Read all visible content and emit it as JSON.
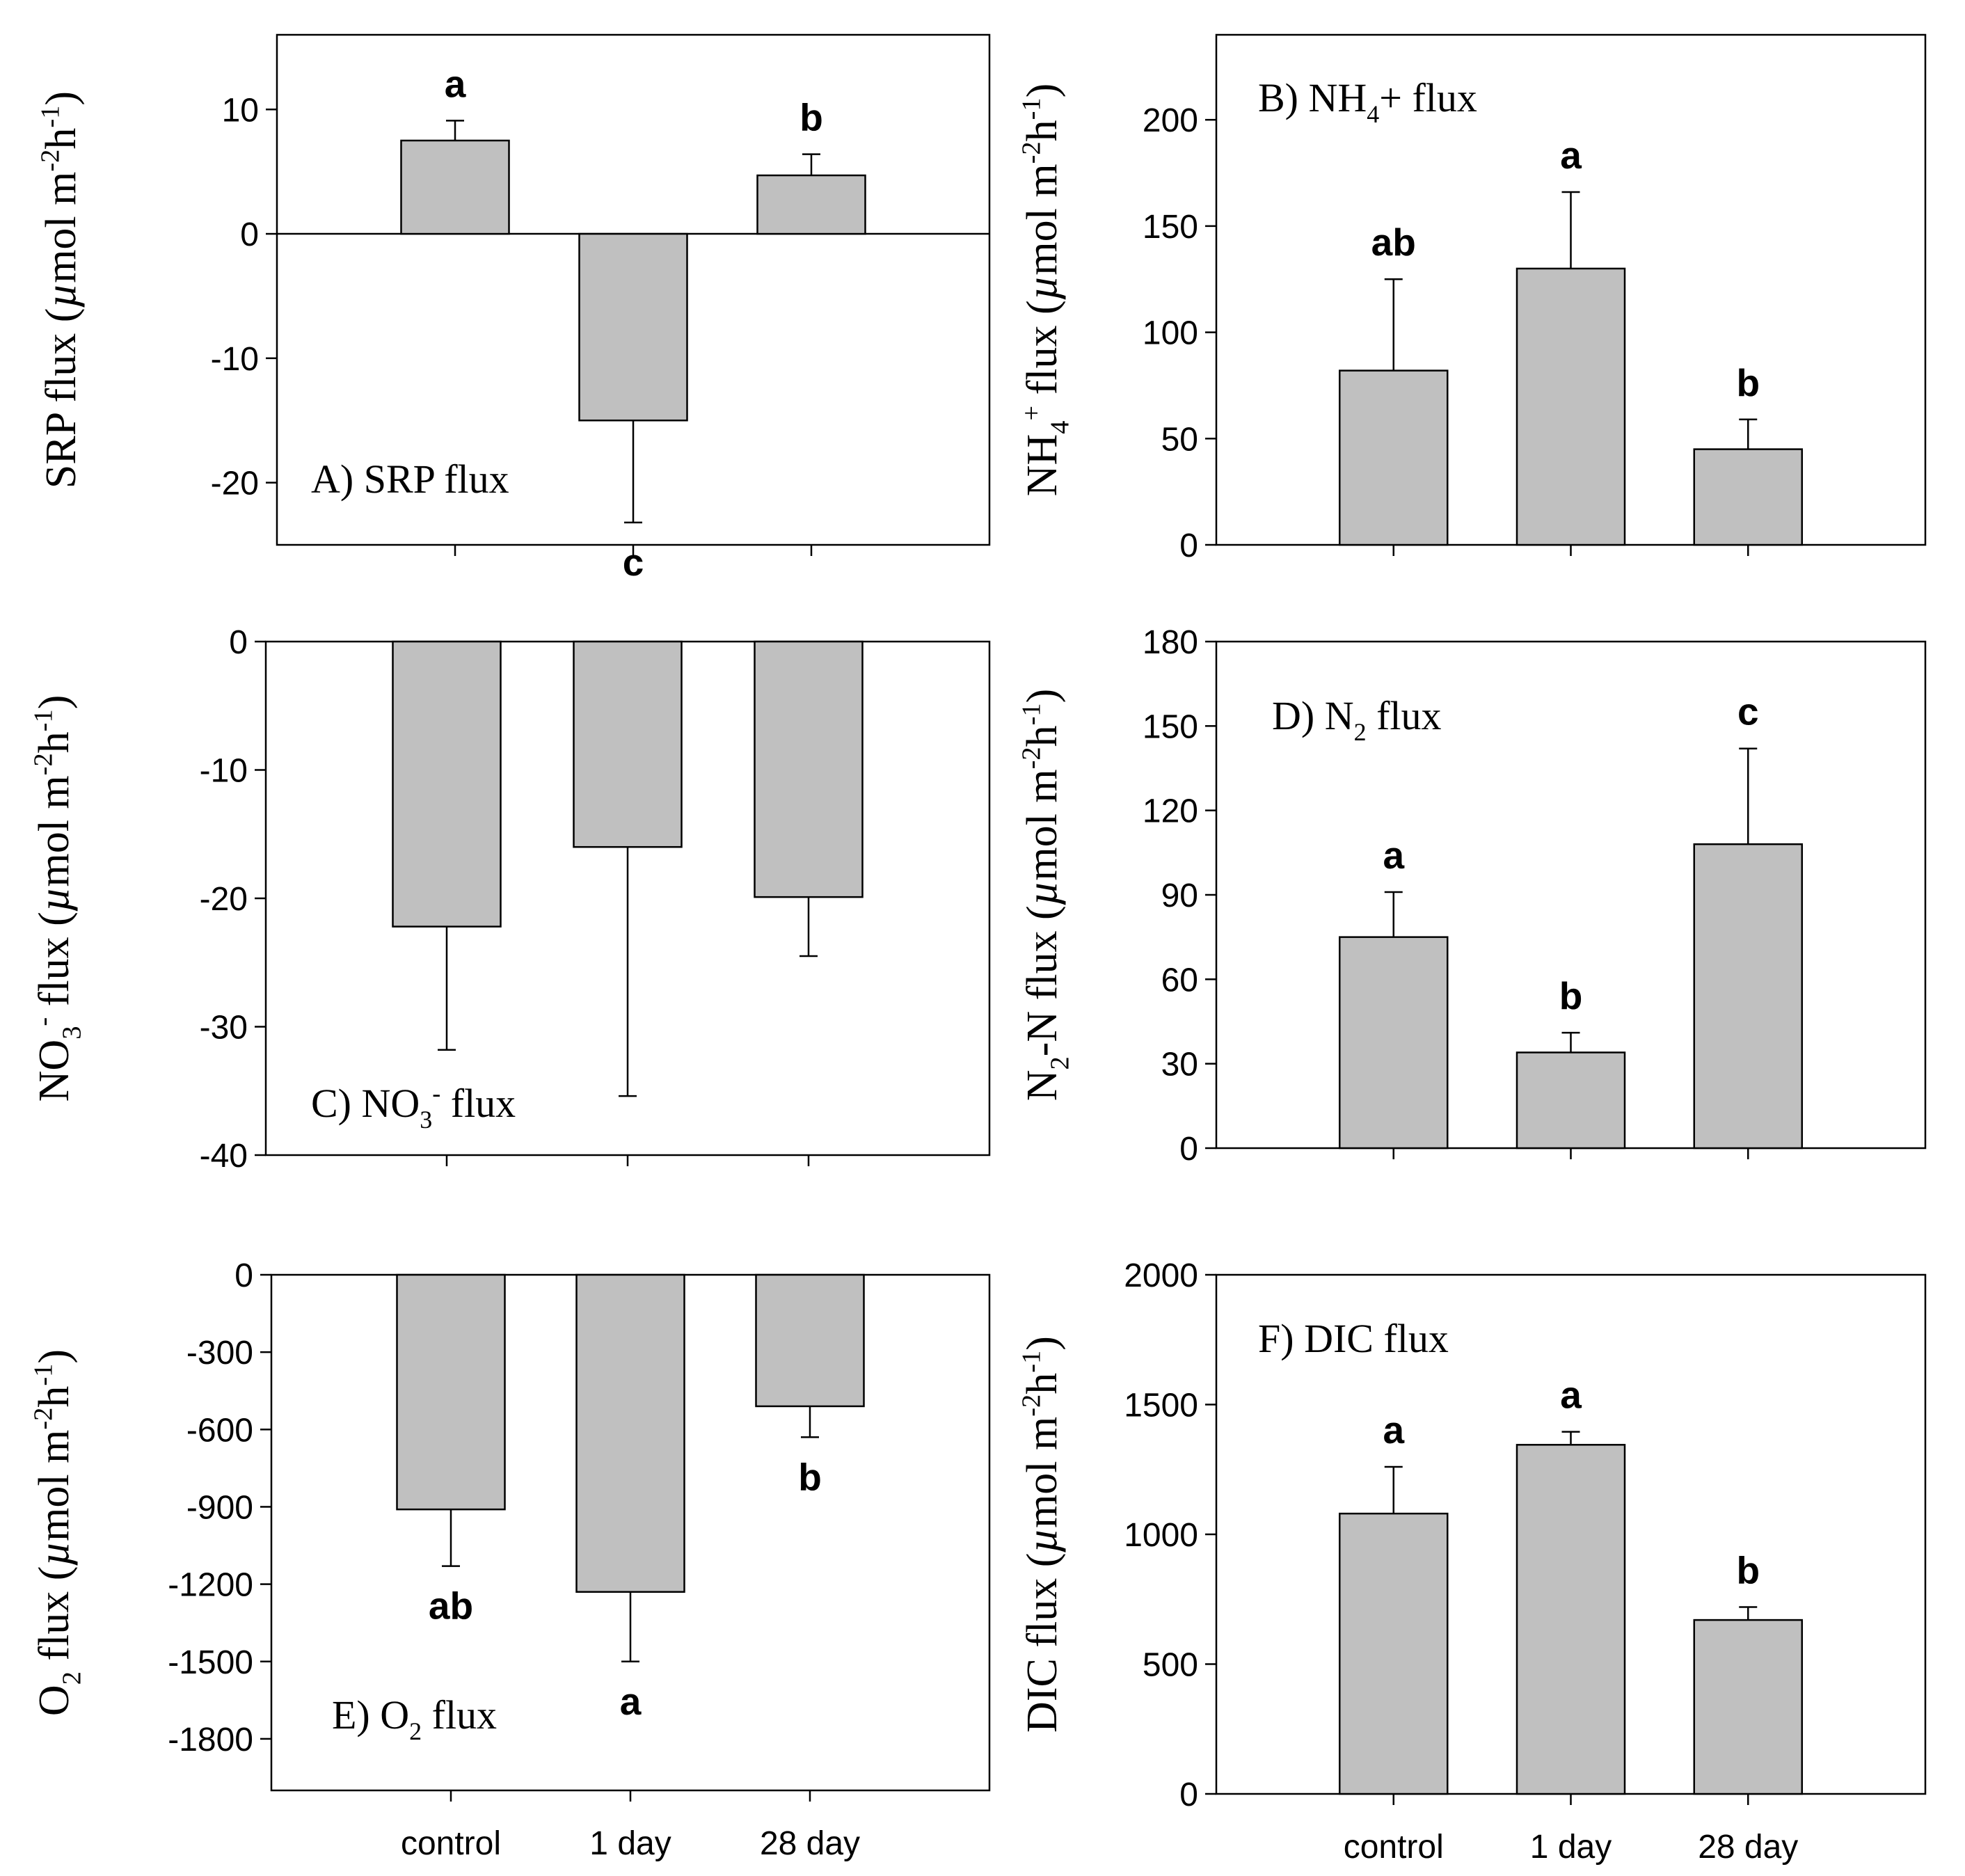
{
  "chart_data": [
    {
      "id": "A",
      "type": "bar",
      "title": "A) SRP flux",
      "title_parts": [
        {
          "t": "A) SRP flux"
        }
      ],
      "ylabel": "SRP flux (µmol m-2 h-1)",
      "ylabel_parts": [
        {
          "t": "SRP flux ("
        },
        {
          "t": "µ",
          "style": "mu"
        },
        {
          "t": "mol m"
        },
        {
          "t": "-2",
          "sup": true
        },
        {
          "t": "h"
        },
        {
          "t": "-1",
          "sup": true
        },
        {
          "t": ")"
        }
      ],
      "categories": [
        "control",
        "1 day",
        "28 day"
      ],
      "show_categories": false,
      "values": [
        7.5,
        -15,
        4.7
      ],
      "errors": [
        1.6,
        8.2,
        1.7
      ],
      "letters": [
        "a",
        "c",
        "b"
      ],
      "ylim": [
        -25,
        16
      ],
      "yticks": [
        10,
        0,
        -10,
        -20
      ],
      "zero_line": true,
      "bar_color": "#c0c0c0"
    },
    {
      "id": "B",
      "type": "bar",
      "title": "B) NH4+ flux",
      "title_parts": [
        {
          "t": "B) NH"
        },
        {
          "t": "4",
          "sub": true
        },
        {
          "t": "+ flux"
        }
      ],
      "ylabel": "NH4+ flux (µmol m-2 h-1)",
      "ylabel_parts": [
        {
          "t": "NH"
        },
        {
          "t": "4",
          "sub": true
        },
        {
          "t": "+",
          "sup": true
        },
        {
          "t": " flux ("
        },
        {
          "t": "µ",
          "style": "mu"
        },
        {
          "t": "mol m"
        },
        {
          "t": "-2",
          "sup": true
        },
        {
          "t": "h"
        },
        {
          "t": "-1",
          "sup": true
        },
        {
          "t": ")"
        }
      ],
      "categories": [
        "control",
        "1 day",
        "28 day"
      ],
      "show_categories": false,
      "values": [
        82,
        130,
        45
      ],
      "errors": [
        43,
        36,
        14
      ],
      "letters": [
        "ab",
        "a",
        "b"
      ],
      "ylim": [
        0,
        240
      ],
      "yticks": [
        0,
        50,
        100,
        150,
        200
      ],
      "zero_line": false,
      "bar_color": "#c0c0c0"
    },
    {
      "id": "C",
      "type": "bar",
      "title": "C) NO3- flux",
      "title_parts": [
        {
          "t": "C) NO"
        },
        {
          "t": "3",
          "sub": true
        },
        {
          "t": "-",
          "sup": true
        },
        {
          "t": " flux"
        }
      ],
      "ylabel": "NO3- flux (µmol m-2 h-1)",
      "ylabel_parts": [
        {
          "t": "NO"
        },
        {
          "t": "3",
          "sub": true
        },
        {
          "t": "-",
          "sup": true
        },
        {
          "t": " flux ("
        },
        {
          "t": "µ",
          "style": "mu"
        },
        {
          "t": "mol m"
        },
        {
          "t": "-2",
          "sup": true
        },
        {
          "t": "h"
        },
        {
          "t": "-1",
          "sup": true
        },
        {
          "t": ")"
        }
      ],
      "categories": [
        "control",
        "1 day",
        "28 day"
      ],
      "show_categories": false,
      "values": [
        -22.2,
        -16,
        -19.9
      ],
      "errors": [
        9.6,
        19.4,
        4.6
      ],
      "letters": [
        "",
        "",
        ""
      ],
      "ylim": [
        -40,
        0
      ],
      "yticks": [
        0,
        -10,
        -20,
        -30,
        -40
      ],
      "zero_line": false,
      "bar_color": "#c0c0c0"
    },
    {
      "id": "D",
      "type": "bar",
      "title": "D) N2 flux",
      "title_parts": [
        {
          "t": "D) N"
        },
        {
          "t": "2",
          "sub": true
        },
        {
          "t": " flux"
        }
      ],
      "ylabel": "N2-N flux (µmol m-2 h-1)",
      "ylabel_parts": [
        {
          "t": "N"
        },
        {
          "t": "2",
          "sub": true
        },
        {
          "t": "-N flux ("
        },
        {
          "t": "µ",
          "style": "mu"
        },
        {
          "t": "mol m"
        },
        {
          "t": "-2",
          "sup": true
        },
        {
          "t": "h"
        },
        {
          "t": "-1",
          "sup": true
        },
        {
          "t": ")"
        }
      ],
      "categories": [
        "control",
        "1 day",
        "28 day"
      ],
      "show_categories": false,
      "values": [
        75,
        34,
        108
      ],
      "errors": [
        16,
        7,
        34
      ],
      "letters": [
        "a",
        "b",
        "c"
      ],
      "ylim": [
        0,
        180
      ],
      "yticks": [
        0,
        30,
        60,
        90,
        120,
        150,
        180
      ],
      "zero_line": false,
      "bar_color": "#c0c0c0"
    },
    {
      "id": "E",
      "type": "bar",
      "title": "E) O2 flux",
      "title_parts": [
        {
          "t": "E) O"
        },
        {
          "t": "2",
          "sub": true
        },
        {
          "t": " flux"
        }
      ],
      "ylabel": "O2 flux (µmol m-2 h-1)",
      "ylabel_parts": [
        {
          "t": "O"
        },
        {
          "t": "2",
          "sub": true
        },
        {
          "t": " flux ("
        },
        {
          "t": "µ",
          "style": "mu"
        },
        {
          "t": "mol m"
        },
        {
          "t": "-2",
          "sup": true
        },
        {
          "t": "h"
        },
        {
          "t": "-1",
          "sup": true
        },
        {
          "t": ")"
        }
      ],
      "categories": [
        "control",
        "1 day",
        "28 day"
      ],
      "show_categories": true,
      "values": [
        -910,
        -1230,
        -510
      ],
      "errors": [
        220,
        270,
        120
      ],
      "letters": [
        "ab",
        "a",
        "b"
      ],
      "ylim": [
        -2000,
        0
      ],
      "yticks": [
        0,
        -300,
        -600,
        -900,
        -1200,
        -1500,
        -1800
      ],
      "zero_line": false,
      "bar_color": "#c0c0c0"
    },
    {
      "id": "F",
      "type": "bar",
      "title": "F) DIC flux",
      "title_parts": [
        {
          "t": "F) DIC flux"
        }
      ],
      "ylabel": "DIC flux (µmol m-2 h-1)",
      "ylabel_parts": [
        {
          "t": "DIC flux ("
        },
        {
          "t": "µ",
          "style": "mu"
        },
        {
          "t": "mol m"
        },
        {
          "t": "-2",
          "sup": true
        },
        {
          "t": "h"
        },
        {
          "t": "-1",
          "sup": true
        },
        {
          "t": ")"
        }
      ],
      "categories": [
        "control",
        "1 day",
        "28 day"
      ],
      "show_categories": true,
      "values": [
        1080,
        1345,
        670
      ],
      "errors": [
        180,
        50,
        50
      ],
      "letters": [
        "a",
        "a",
        "b"
      ],
      "ylim": [
        0,
        2000
      ],
      "yticks": [
        0,
        500,
        1000,
        1500,
        2000
      ],
      "zero_line": false,
      "bar_color": "#c0c0c0"
    }
  ]
}
